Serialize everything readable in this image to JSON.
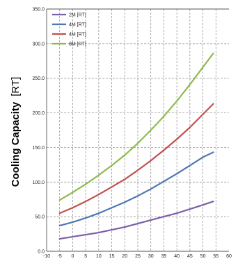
{
  "chart_data": {
    "type": "line",
    "ylabel": "Cooling Capacity",
    "ylabel_unit": "[RT]",
    "xlim": [
      -10,
      60
    ],
    "ylim": [
      0,
      350
    ],
    "x_ticks": [
      "-10",
      "-5",
      "0",
      "5",
      "10",
      "15",
      "20",
      "25",
      "30",
      "35",
      "40",
      "45",
      "50",
      "55",
      "60"
    ],
    "y_ticks": [
      "0.0",
      "50.0",
      "100.0",
      "150.0",
      "200.0",
      "250.0",
      "300.0",
      "350.0"
    ],
    "grid": "dashed",
    "legend_position": "top-left",
    "x": [
      -5,
      0,
      5,
      10,
      15,
      20,
      25,
      30,
      35,
      40,
      45,
      50,
      54
    ],
    "series": [
      {
        "name": "2M [RT]",
        "color": "#7b5ea7",
        "values": [
          18,
          21,
          24,
          27,
          31,
          35,
          40,
          45,
          50,
          55,
          61,
          67,
          72
        ]
      },
      {
        "name": "4M [RT]",
        "color": "#4f76b5",
        "values": [
          37,
          42,
          48,
          55,
          63,
          71,
          80,
          90,
          101,
          112,
          124,
          136,
          143
        ]
      },
      {
        "name": "4M [RT]",
        "color": "#c0504d",
        "values": [
          55,
          63,
          72,
          82,
          93,
          104,
          117,
          131,
          146,
          162,
          179,
          198,
          213
        ]
      },
      {
        "name": "8M [RT]",
        "color": "#8fba4a",
        "values": [
          74,
          85,
          97,
          110,
          124,
          139,
          156,
          175,
          195,
          217,
          241,
          266,
          286
        ]
      }
    ]
  }
}
